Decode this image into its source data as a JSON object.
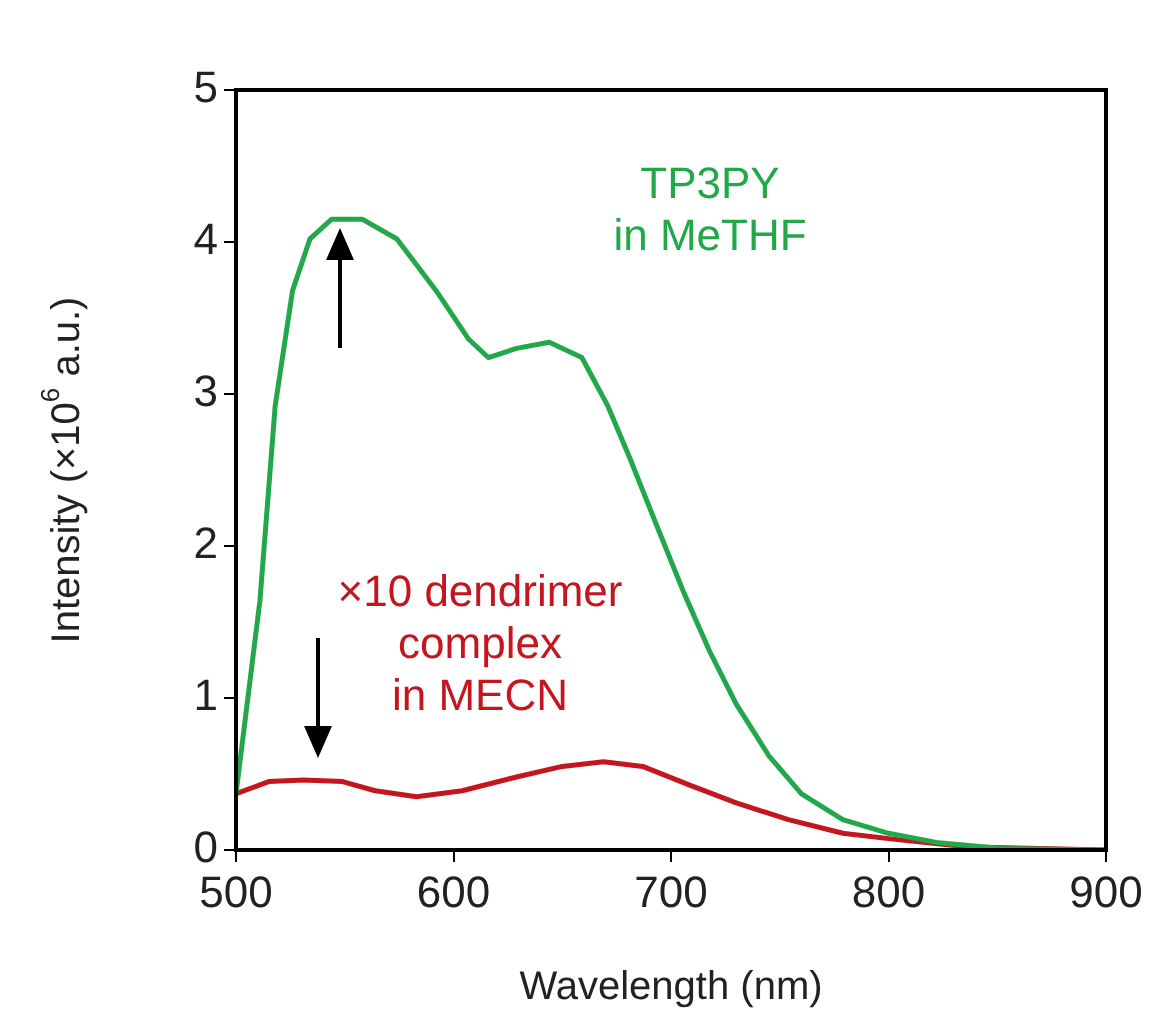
{
  "chart_data": {
    "type": "line",
    "xlabel": "Wavelength (nm)",
    "ylabel": "Intensity (×10$^{6}$ a.u.)",
    "xlim": [
      500,
      900
    ],
    "ylim": [
      0,
      5
    ],
    "xticks": [
      500,
      600,
      700,
      800,
      900
    ],
    "yticks": [
      0,
      1,
      2,
      3,
      4,
      5
    ],
    "grid": false,
    "legend": false,
    "marker": "none",
    "line_style": "solid",
    "series": [
      {
        "name": "TP3PY\nin MeTHF",
        "color": "#22a84b",
        "x": [
          500,
          511,
          518,
          526,
          534,
          544,
          558,
          574,
          592,
          607,
          616,
          629,
          644,
          659,
          671,
          681,
          693,
          706,
          718,
          730,
          745,
          760,
          779,
          800,
          822,
          852,
          900
        ],
        "values": [
          0.37,
          1.64,
          2.92,
          3.68,
          4.02,
          4.15,
          4.15,
          4.02,
          3.68,
          3.36,
          3.24,
          3.3,
          3.34,
          3.24,
          2.92,
          2.58,
          2.15,
          1.69,
          1.3,
          0.96,
          0.62,
          0.37,
          0.2,
          0.11,
          0.05,
          0.01,
          0
        ]
      },
      {
        "name": "×10 dendrimer\ncomplex\nin MECN",
        "color": "#c4161e",
        "x": [
          500,
          515,
          531,
          549,
          564,
          583,
          604,
          629,
          650,
          669,
          687,
          708,
          730,
          754,
          779,
          803,
          837,
          900
        ],
        "values": [
          0.37,
          0.45,
          0.46,
          0.45,
          0.39,
          0.35,
          0.39,
          0.48,
          0.55,
          0.58,
          0.55,
          0.43,
          0.31,
          0.2,
          0.11,
          0.07,
          0.02,
          0
        ]
      }
    ]
  }
}
